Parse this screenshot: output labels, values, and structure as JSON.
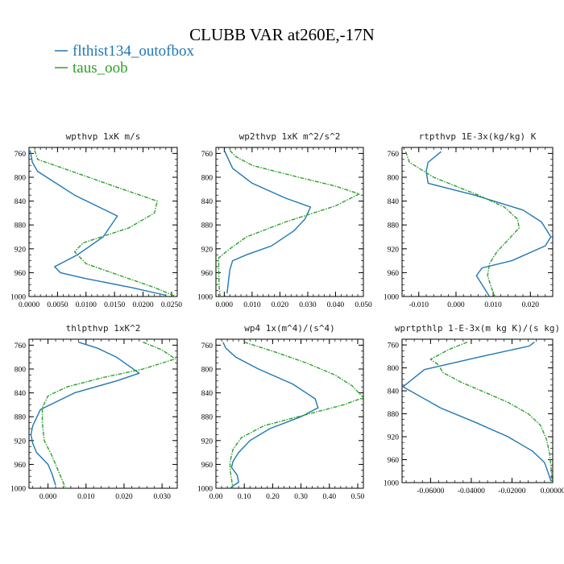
{
  "figure": {
    "title": "CLUBB VAR at260E,-17N",
    "legend": [
      {
        "label": "flthist134_outofbox",
        "color": "#1f77b4"
      },
      {
        "label": "taus_oob",
        "color": "#2ca02c"
      }
    ]
  },
  "chart_data": [
    {
      "type": "line",
      "title": "wpthvp   1xK m/s",
      "xlim": [
        0.0,
        0.026
      ],
      "ylim": [
        1000,
        750
      ],
      "x_ticks": [
        "0.0000",
        "0.0050",
        "0.0100",
        "0.0150",
        "0.0200",
        "0.0250"
      ],
      "x_tick_values": [
        0.0,
        0.005,
        0.01,
        0.015,
        0.02,
        0.025
      ],
      "y_ticks": [
        "760",
        "800",
        "840",
        "880",
        "920",
        "960",
        "1000"
      ],
      "y_tick_values": [
        760,
        800,
        840,
        880,
        920,
        960,
        1000
      ],
      "series": [
        {
          "name": "flthist134_outofbox",
          "x": [
            0.0002,
            0.0004,
            0.0006,
            0.0015,
            0.008,
            0.0155,
            0.013,
            0.0085,
            0.0045,
            0.0055,
            0.01,
            0.018,
            0.024
          ],
          "y": [
            755,
            765,
            775,
            790,
            830,
            865,
            900,
            930,
            950,
            960,
            970,
            985,
            998
          ]
        },
        {
          "name": "taus_oob",
          "x": [
            0.001,
            0.0015,
            0.006,
            0.014,
            0.0225,
            0.022,
            0.0175,
            0.0095,
            0.008,
            0.01,
            0.016,
            0.022,
            0.0258
          ],
          "y": [
            755,
            770,
            785,
            812,
            840,
            860,
            885,
            910,
            925,
            945,
            965,
            985,
            1000
          ]
        }
      ]
    },
    {
      "type": "line",
      "title": "wp2thvp   1xK m^2/s^2",
      "xlim": [
        -0.003,
        0.05
      ],
      "ylim": [
        1000,
        750
      ],
      "x_ticks": [
        "0.000",
        "0.010",
        "0.020",
        "0.030",
        "0.040",
        "0.050"
      ],
      "x_tick_values": [
        0.0,
        0.01,
        0.02,
        0.03,
        0.04,
        0.05
      ],
      "y_ticks": [
        "760",
        "800",
        "840",
        "880",
        "920",
        "960",
        "1000"
      ],
      "y_tick_values": [
        760,
        800,
        840,
        880,
        920,
        960,
        1000
      ],
      "series": [
        {
          "name": "flthist134_outofbox",
          "x": [
            0.0,
            0.001,
            0.003,
            0.01,
            0.022,
            0.031,
            0.029,
            0.025,
            0.017,
            0.008,
            0.003,
            0.002,
            0.0015,
            0.001
          ],
          "y": [
            755,
            765,
            785,
            810,
            835,
            850,
            870,
            890,
            915,
            930,
            940,
            955,
            975,
            995
          ]
        },
        {
          "name": "taus_oob",
          "x": [
            0.002,
            0.004,
            0.01,
            0.025,
            0.04,
            0.0485,
            0.04,
            0.022,
            0.008,
            0.002,
            -0.002,
            -0.002,
            -0.0018,
            -0.0015
          ],
          "y": [
            755,
            765,
            780,
            798,
            815,
            828,
            848,
            875,
            900,
            920,
            935,
            960,
            985,
            1000
          ]
        }
      ]
    },
    {
      "type": "line",
      "title": "rtpthvp   1E-3x(kg/kg) K",
      "xlim": [
        -0.0145,
        0.026
      ],
      "ylim": [
        1000,
        750
      ],
      "x_ticks": [
        "-0.010",
        "0.000",
        "0.010",
        "0.020"
      ],
      "x_tick_values": [
        -0.01,
        0.0,
        0.01,
        0.02
      ],
      "y_ticks": [
        "760",
        "800",
        "840",
        "880",
        "920",
        "960",
        "1000"
      ],
      "y_tick_values": [
        760,
        800,
        840,
        880,
        920,
        960,
        1000
      ],
      "series": [
        {
          "name": "flthist134_outofbox",
          "x": [
            -0.004,
            -0.0075,
            -0.008,
            -0.0075,
            0.005,
            0.018,
            0.023,
            0.0255,
            0.024,
            0.015,
            0.007,
            0.0055,
            0.0075,
            0.009
          ],
          "y": [
            757,
            775,
            790,
            810,
            830,
            855,
            875,
            900,
            915,
            940,
            952,
            965,
            985,
            1000
          ]
        },
        {
          "name": "taus_oob",
          "x": [
            -0.0135,
            -0.0125,
            -0.006,
            0.006,
            0.013,
            0.0165,
            0.017,
            0.014,
            0.011,
            0.009,
            0.0085,
            0.0095,
            0.0105
          ],
          "y": [
            757,
            775,
            800,
            830,
            850,
            870,
            885,
            905,
            925,
            945,
            965,
            985,
            1000
          ]
        }
      ]
    },
    {
      "type": "line",
      "title": "thlpthvp   1xK^2",
      "xlim": [
        -0.005,
        0.034
      ],
      "ylim": [
        1000,
        750
      ],
      "x_ticks": [
        "0.000",
        "0.010",
        "0.020",
        "0.030"
      ],
      "x_tick_values": [
        0.0,
        0.01,
        0.02,
        0.03
      ],
      "y_ticks": [
        "760",
        "800",
        "840",
        "880",
        "920",
        "960",
        "1000"
      ],
      "y_tick_values": [
        760,
        800,
        840,
        880,
        920,
        960,
        1000
      ],
      "series": [
        {
          "name": "flthist134_outofbox",
          "x": [
            0.008,
            0.013,
            0.018,
            0.024,
            0.018,
            0.007,
            -0.002,
            -0.004,
            -0.0045,
            -0.004,
            -0.003,
            0.0,
            0.001,
            0.0015,
            0.002
          ],
          "y": [
            755,
            765,
            780,
            807,
            820,
            840,
            868,
            895,
            910,
            925,
            940,
            960,
            975,
            985,
            995
          ]
        },
        {
          "name": "taus_oob",
          "x": [
            0.025,
            0.03,
            0.0335,
            0.025,
            0.014,
            0.005,
            0.0,
            -0.0015,
            -0.0015,
            -0.001,
            0.001,
            0.003,
            0.0045
          ],
          "y": [
            755,
            768,
            783,
            800,
            815,
            830,
            845,
            865,
            890,
            920,
            945,
            975,
            998
          ]
        }
      ]
    },
    {
      "type": "line",
      "title": "wp4   1x(m^4)/(s^4)",
      "xlim": [
        0.0,
        0.52
      ],
      "ylim": [
        1000,
        750
      ],
      "x_ticks": [
        "0.00",
        "0.10",
        "0.20",
        "0.30",
        "0.40",
        "0.50"
      ],
      "x_tick_values": [
        0.0,
        0.1,
        0.2,
        0.3,
        0.4,
        0.5
      ],
      "y_ticks": [
        "760",
        "800",
        "840",
        "880",
        "920",
        "960",
        "1000"
      ],
      "y_tick_values": [
        760,
        800,
        840,
        880,
        920,
        960,
        1000
      ],
      "series": [
        {
          "name": "flthist134_outofbox",
          "x": [
            0.025,
            0.035,
            0.07,
            0.15,
            0.27,
            0.35,
            0.36,
            0.3,
            0.19,
            0.12,
            0.08,
            0.06,
            0.055,
            0.075,
            0.08,
            0.06,
            0.05
          ],
          "y": [
            755,
            765,
            780,
            800,
            825,
            850,
            865,
            880,
            900,
            920,
            940,
            955,
            965,
            978,
            990,
            996,
            1000
          ]
        },
        {
          "name": "taus_oob",
          "x": [
            0.1,
            0.2,
            0.32,
            0.42,
            0.48,
            0.52,
            0.45,
            0.33,
            0.17,
            0.09,
            0.06,
            0.05,
            0.05,
            0.055,
            0.06
          ],
          "y": [
            755,
            770,
            790,
            810,
            828,
            848,
            860,
            875,
            895,
            915,
            935,
            955,
            970,
            985,
            1000
          ]
        }
      ]
    },
    {
      "type": "line",
      "title": "wprtpthlp   1-E-3x(m kg K)/(s kg)",
      "xlim": [
        -0.074,
        0.0
      ],
      "ylim": [
        1000,
        750
      ],
      "x_ticks": [
        "-0.06000",
        "-0.04000",
        "-0.02000",
        "0.00000"
      ],
      "x_tick_values": [
        -0.06,
        -0.04,
        -0.02,
        0.0
      ],
      "y_ticks": [
        "760",
        "800",
        "840",
        "880",
        "920",
        "960",
        "1000"
      ],
      "y_tick_values": [
        760,
        800,
        840,
        880,
        920,
        960,
        1000
      ],
      "series": [
        {
          "name": "flthist134_outofbox",
          "x": [
            -0.009,
            -0.0115,
            -0.035,
            -0.063,
            -0.069,
            -0.0735,
            -0.065,
            -0.055,
            -0.038,
            -0.022,
            -0.01,
            -0.004,
            -0.002,
            -0.0008
          ],
          "y": [
            755,
            762,
            780,
            803,
            820,
            833,
            850,
            870,
            895,
            920,
            945,
            965,
            985,
            998
          ]
        },
        {
          "name": "taus_oob",
          "x": [
            -0.042,
            -0.051,
            -0.06,
            -0.056,
            -0.054,
            -0.045,
            -0.035,
            -0.022,
            -0.012,
            -0.006,
            -0.003,
            -0.0015,
            -0.0008,
            -0.0004
          ],
          "y": [
            755,
            768,
            785,
            795,
            808,
            825,
            840,
            860,
            880,
            900,
            925,
            950,
            975,
            998
          ]
        }
      ]
    }
  ]
}
